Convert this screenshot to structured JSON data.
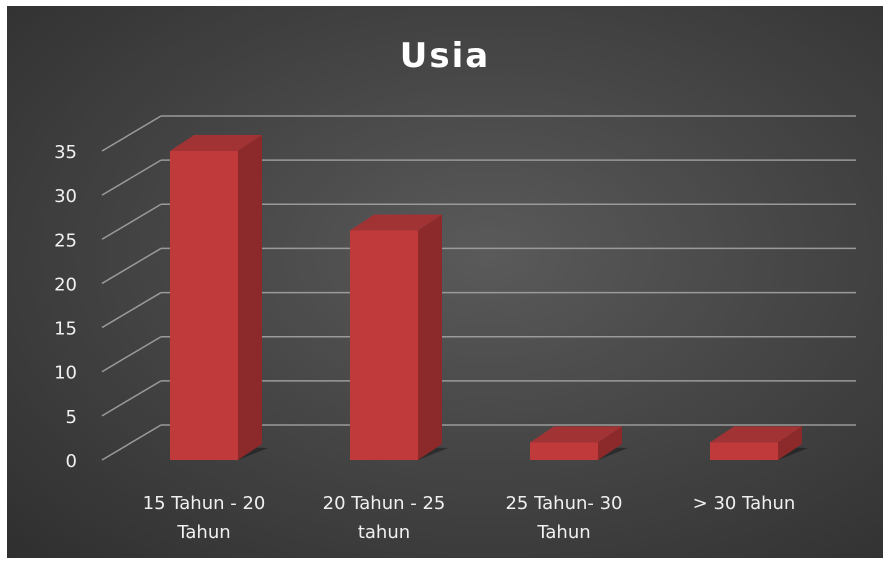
{
  "chart_data": {
    "type": "bar",
    "title": "Usia",
    "categories": [
      [
        "15 Tahun - 20",
        "Tahun"
      ],
      [
        "20 Tahun - 25",
        "tahun"
      ],
      [
        "25 Tahun- 30",
        "Tahun"
      ],
      [
        "> 30 Tahun"
      ]
    ],
    "values": [
      35,
      26,
      2,
      2
    ],
    "ylim": [
      0,
      35
    ],
    "yticks": [
      "0",
      "5",
      "10",
      "15",
      "20",
      "25",
      "30",
      "35"
    ],
    "grid": true,
    "style": "3d-column",
    "colors": {
      "bar": "#c0393b",
      "bar_side": "#8c2a2b",
      "bar_top": "#a23335",
      "grid": "#9a9a9a",
      "background": "#404040"
    }
  }
}
